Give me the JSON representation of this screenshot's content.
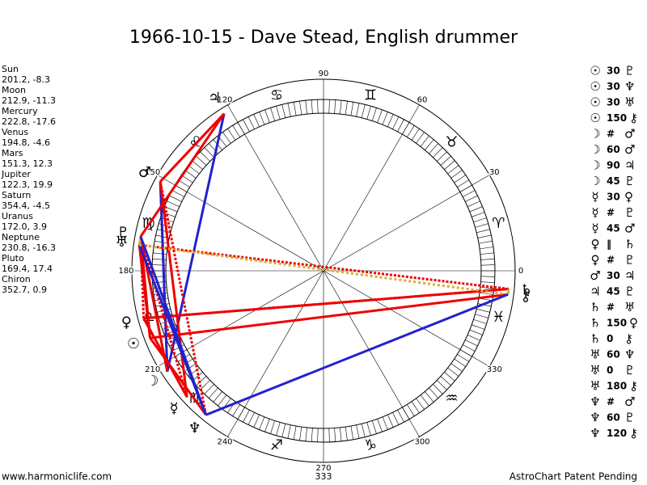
{
  "header": {
    "title": "1966-10-15 - Dave Stead, English drummer"
  },
  "planets": [
    {
      "name": "Sun",
      "symbol": "☉",
      "position": "201.2, -8.3",
      "longitude": 201.2
    },
    {
      "name": "Moon",
      "symbol": "☽",
      "position": "212.9, -11.3",
      "longitude": 212.9
    },
    {
      "name": "Mercury",
      "symbol": "☿",
      "position": "222.8, -17.6",
      "longitude": 222.8
    },
    {
      "name": "Venus",
      "symbol": "♀",
      "position": "194.8, -4.6",
      "longitude": 194.8
    },
    {
      "name": "Mars",
      "symbol": "♂",
      "position": "151.3, 12.3",
      "longitude": 151.3
    },
    {
      "name": "Jupiter",
      "symbol": "♃",
      "position": "122.3, 19.9",
      "longitude": 122.3
    },
    {
      "name": "Saturn",
      "symbol": "♄",
      "position": "354.4, -4.5",
      "longitude": 354.4
    },
    {
      "name": "Uranus",
      "symbol": "♅",
      "position": "172.0, 3.9",
      "longitude": 172.0
    },
    {
      "name": "Neptune",
      "symbol": "♆",
      "position": "230.8, -16.3",
      "longitude": 230.8
    },
    {
      "name": "Pluto",
      "symbol": "♇",
      "position": "169.4, 17.4",
      "longitude": 169.4
    },
    {
      "name": "Chiron",
      "symbol": "⚷",
      "position": "352.7, 0.9",
      "longitude": 352.7
    }
  ],
  "aspects": [
    [
      "☉",
      "30",
      "♇"
    ],
    [
      "☉",
      "30",
      "♆"
    ],
    [
      "☉",
      "30",
      "♅"
    ],
    [
      "☉",
      "150",
      "⚷"
    ],
    [
      "☽",
      "#",
      "♂"
    ],
    [
      "☽",
      "60",
      "♂"
    ],
    [
      "☽",
      "90",
      "♃"
    ],
    [
      "☽",
      "45",
      "♇"
    ],
    [
      "☿",
      "30",
      "♀"
    ],
    [
      "☿",
      "#",
      "♇"
    ],
    [
      "☿",
      "45",
      "♂"
    ],
    [
      "♀",
      "‖",
      "♄"
    ],
    [
      "♀",
      "#",
      "♇"
    ],
    [
      "♂",
      "30",
      "♃"
    ],
    [
      "♃",
      "45",
      "♇"
    ],
    [
      "♄",
      "#",
      "♅"
    ],
    [
      "♄",
      "150",
      "♀"
    ],
    [
      "♄",
      "0",
      "⚷"
    ],
    [
      "♅",
      "60",
      "♆"
    ],
    [
      "♅",
      "0",
      "♇"
    ],
    [
      "♅",
      "180",
      "⚷"
    ],
    [
      "♆",
      "#",
      "♂"
    ],
    [
      "♆",
      "60",
      "♇"
    ],
    [
      "♆",
      "120",
      "⚷"
    ]
  ],
  "wheel": {
    "degrees": [
      0,
      30,
      60,
      90,
      120,
      150,
      180,
      210,
      240,
      270,
      300,
      330
    ],
    "signs": [
      "♈",
      "♉",
      "♊",
      "♋",
      "♌",
      "♍",
      "♎",
      "♏",
      "♐",
      "♑",
      "♒",
      "♓"
    ],
    "bottom_label": "333"
  },
  "footer": {
    "left": "www.harmoniclife.com",
    "right": "AstroChart Patent Pending"
  }
}
